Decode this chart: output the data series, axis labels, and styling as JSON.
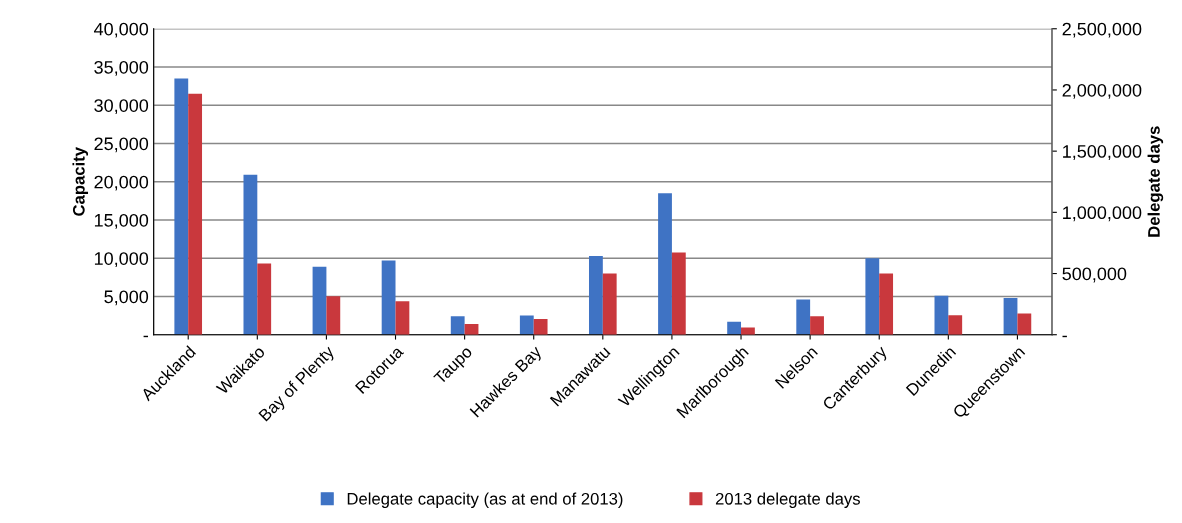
{
  "chart_data": {
    "type": "bar",
    "ylabel": "Capacity",
    "y2label": "Delegate days",
    "categories": [
      "Auckland",
      "Waikato",
      "Bay of Plenty",
      "Rotorua",
      "Taupo",
      "Hawkes Bay",
      "Manawatu",
      "Wellington",
      "Marlborough",
      "Nelson",
      "Canterbury",
      "Dunedin",
      "Queenstown"
    ],
    "series": [
      {
        "name": "Delegate capacity (as at end of 2013)",
        "color": "#3f73c4",
        "values": [
          33500,
          20900,
          8900,
          9700,
          2400,
          2500,
          10300,
          18500,
          1700,
          4600,
          10000,
          5100,
          4800
        ]
      },
      {
        "name": "2013 delegate days",
        "color": "#c9383d",
        "axis": "y2",
        "values": [
          1970000,
          581000,
          315000,
          274000,
          88000,
          129000,
          500000,
          672000,
          60000,
          151000,
          500000,
          159000,
          173000
        ]
      }
    ],
    "ylim": [
      0,
      40000
    ],
    "yticks": [
      {
        "value": 0,
        "label": "-"
      },
      {
        "value": 5000,
        "label": "5,000"
      },
      {
        "value": 10000,
        "label": "10,000"
      },
      {
        "value": 15000,
        "label": "15,000"
      },
      {
        "value": 20000,
        "label": "20,000"
      },
      {
        "value": 25000,
        "label": "25,000"
      },
      {
        "value": 30000,
        "label": "30,000"
      },
      {
        "value": 35000,
        "label": "35,000"
      },
      {
        "value": 40000,
        "label": "40,000"
      }
    ],
    "y2lim": [
      0,
      2500000
    ],
    "y2ticks": [
      {
        "value": 0,
        "label": "-"
      },
      {
        "value": 500000,
        "label": "500,000"
      },
      {
        "value": 1000000,
        "label": "1,000,000"
      },
      {
        "value": 1500000,
        "label": "1,500,000"
      },
      {
        "value": 2000000,
        "label": "2,000,000"
      },
      {
        "value": 2500000,
        "label": "2,500,000"
      }
    ],
    "grid": "y",
    "legend": "bottom"
  }
}
